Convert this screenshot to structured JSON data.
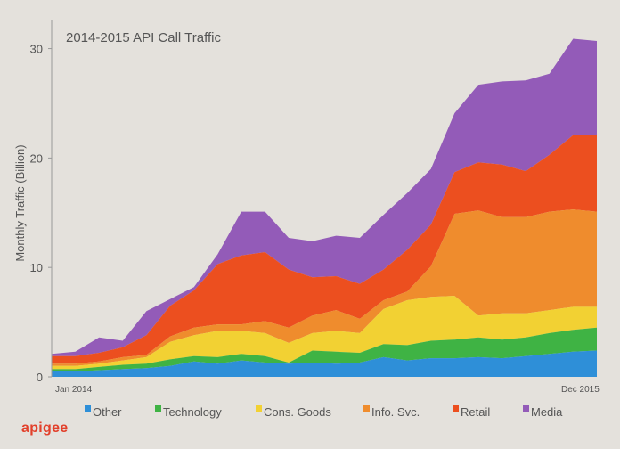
{
  "brand": {
    "logo_text": "apigee"
  },
  "chart_data": {
    "type": "area",
    "stacked": true,
    "title": "2014-2015 API Call Traffic",
    "xlabel": "",
    "ylabel": "Monthly Traffic (Billion)",
    "ylim": [
      0,
      32
    ],
    "yticks": [
      0,
      10,
      20,
      30
    ],
    "grid": false,
    "legend_position": "bottom",
    "x_tick_labels": {
      "first": "Jan 2014",
      "last": "Dec 2015"
    },
    "x": [
      "2014-01",
      "2014-02",
      "2014-03",
      "2014-04",
      "2014-05",
      "2014-06",
      "2014-07",
      "2014-08",
      "2014-09",
      "2014-10",
      "2014-11",
      "2014-12",
      "2015-01",
      "2015-02",
      "2015-03",
      "2015-04",
      "2015-05",
      "2015-06",
      "2015-07",
      "2015-08",
      "2015-09",
      "2015-10",
      "2015-11",
      "2015-12"
    ],
    "series": [
      {
        "name": "Other",
        "color": "#2e8fd8",
        "values": [
          0.5,
          0.5,
          0.6,
          0.7,
          0.8,
          1.0,
          1.4,
          1.2,
          1.5,
          1.3,
          1.2,
          1.3,
          1.2,
          1.3,
          1.8,
          1.5,
          1.7,
          1.7,
          1.8,
          1.7,
          1.9,
          2.1,
          2.3,
          2.4
        ]
      },
      {
        "name": "Technology",
        "color": "#3fb344",
        "values": [
          0.2,
          0.2,
          0.3,
          0.4,
          0.4,
          0.6,
          0.5,
          0.6,
          0.6,
          0.6,
          0.1,
          1.1,
          1.1,
          0.9,
          1.2,
          1.4,
          1.6,
          1.7,
          1.8,
          1.7,
          1.7,
          1.9,
          2.0,
          2.1
        ]
      },
      {
        "name": "Cons. Goods",
        "color": "#f2d133",
        "values": [
          0.3,
          0.3,
          0.3,
          0.4,
          0.6,
          1.6,
          1.9,
          2.4,
          2.1,
          2.1,
          1.8,
          1.6,
          1.9,
          1.8,
          3.2,
          4.1,
          4.0,
          4.0,
          2.0,
          2.4,
          2.2,
          2.1,
          2.1,
          1.9
        ]
      },
      {
        "name": "Info. Svc.",
        "color": "#ef8c2d",
        "values": [
          0.2,
          0.2,
          0.2,
          0.3,
          0.2,
          0.5,
          0.7,
          0.6,
          0.6,
          1.1,
          1.4,
          1.6,
          1.9,
          1.3,
          0.8,
          0.8,
          2.8,
          7.5,
          9.6,
          8.8,
          8.8,
          9.0,
          8.9,
          8.7
        ]
      },
      {
        "name": "Retail",
        "color": "#ec4f1f",
        "values": [
          0.7,
          0.7,
          0.8,
          0.9,
          1.8,
          2.8,
          3.4,
          5.5,
          6.3,
          6.3,
          5.3,
          3.5,
          3.1,
          3.2,
          2.8,
          3.8,
          3.8,
          3.8,
          4.4,
          4.8,
          4.2,
          5.2,
          6.8,
          7.0
        ]
      },
      {
        "name": "Media",
        "color": "#935bb8",
        "values": [
          0.2,
          0.4,
          1.4,
          0.6,
          2.2,
          0.6,
          0.3,
          0.9,
          4.0,
          3.7,
          2.9,
          3.3,
          3.7,
          4.2,
          5.0,
          5.2,
          5.1,
          5.4,
          7.1,
          7.6,
          8.3,
          7.4,
          8.8,
          8.6
        ]
      }
    ]
  }
}
